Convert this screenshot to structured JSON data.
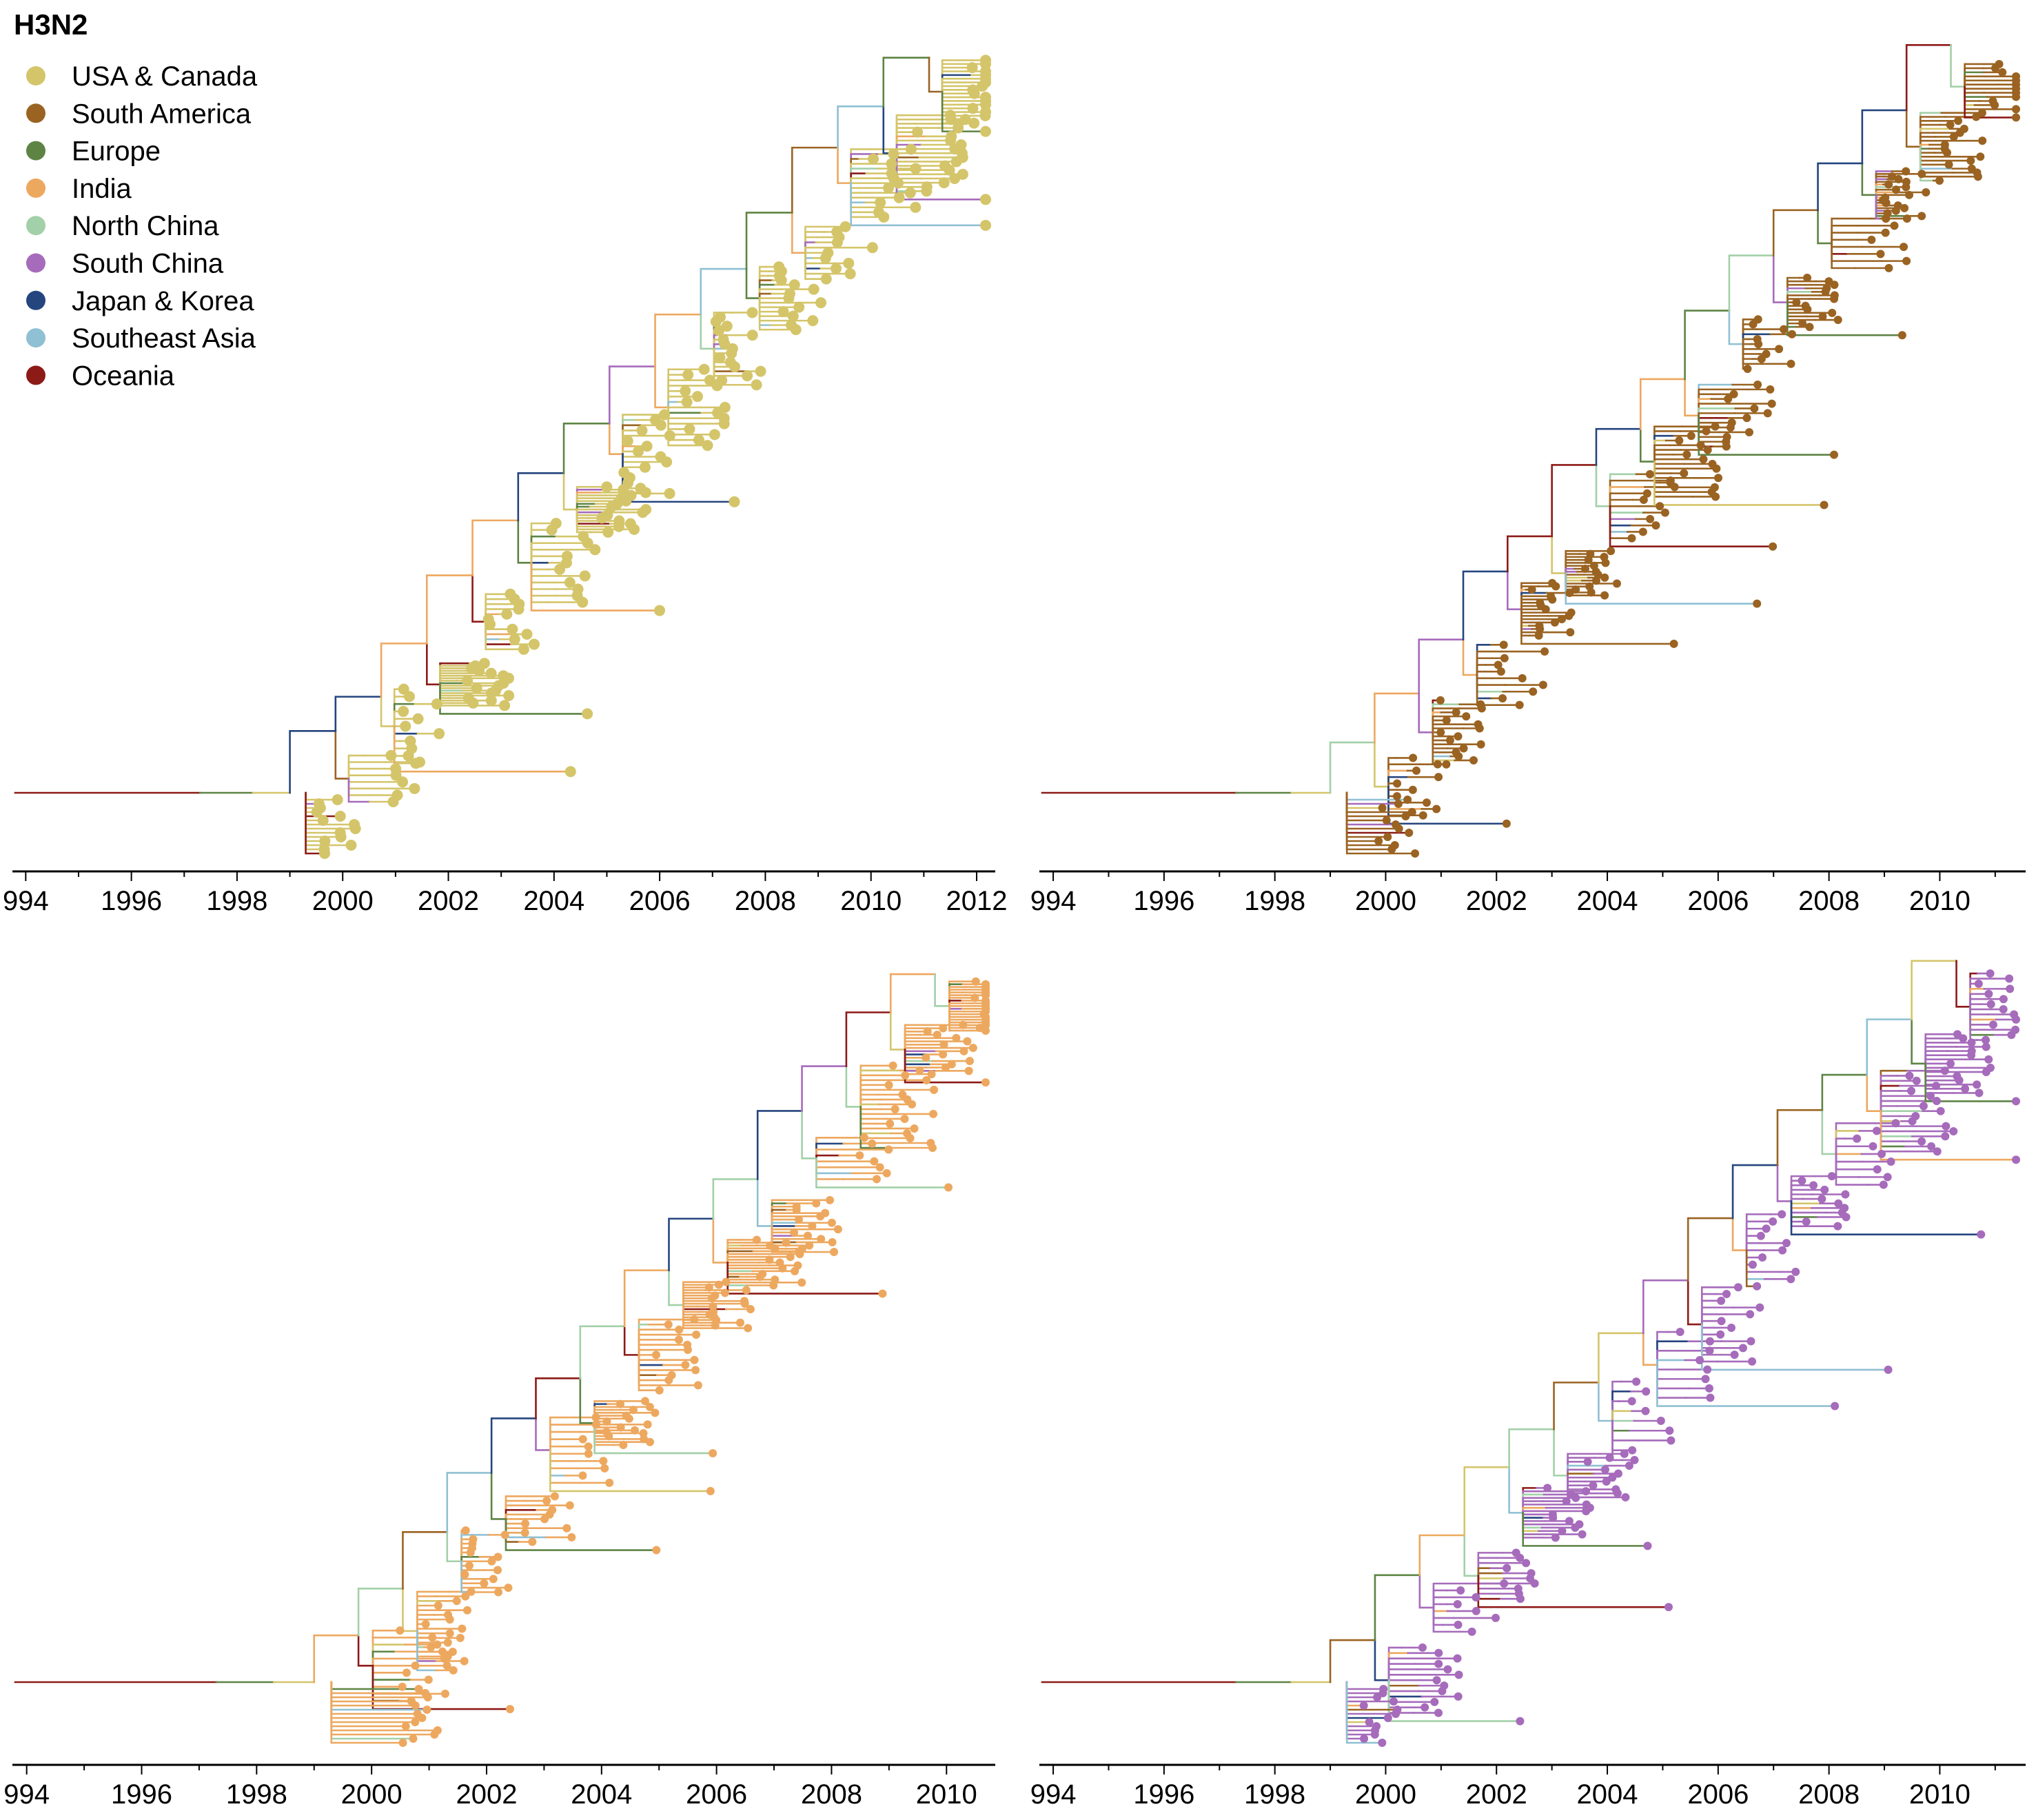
{
  "title": "H3N2",
  "colors": {
    "USA & Canada": "#d4c56a",
    "South America": "#9a6322",
    "Europe": "#5d8444",
    "India": "#eda85f",
    "North China": "#a2d0a8",
    "South China": "#a66bbb",
    "Japan & Korea": "#25457f",
    "Southeast Asia": "#8fc0d3",
    "Oceania": "#8c1a17"
  },
  "legend": [
    {
      "label": "USA & Canada",
      "color": "#d4c56a"
    },
    {
      "label": "South America",
      "color": "#9a6322"
    },
    {
      "label": "Europe",
      "color": "#5d8444"
    },
    {
      "label": "India",
      "color": "#eda85f"
    },
    {
      "label": "North China",
      "color": "#a2d0a8"
    },
    {
      "label": "South China",
      "color": "#a66bbb"
    },
    {
      "label": "Japan & Korea",
      "color": "#25457f"
    },
    {
      "label": "Southeast Asia",
      "color": "#8fc0d3"
    },
    {
      "label": "Oceania",
      "color": "#8c1a17"
    }
  ],
  "chart_data": [
    {
      "type": "phylogenetic-tree",
      "highlighted_region": "USA & Canada",
      "x_axis": {
        "ticks": [
          "994",
          "1996",
          "1998",
          "2000",
          "2002",
          "2004",
          "2006",
          "2008",
          "2010",
          "2012"
        ],
        "range": [
          1993.8,
          2012.3
        ]
      },
      "tips_range": [
        1999.5,
        2012.1
      ]
    },
    {
      "type": "phylogenetic-tree",
      "highlighted_region": "South America",
      "x_axis": {
        "ticks": [
          "994",
          "1996",
          "1998",
          "2000",
          "2002",
          "2004",
          "2006",
          "2008",
          "2010"
        ],
        "range": [
          1993.8,
          2011.5
        ]
      },
      "tips_range": [
        1999.8,
        2011.2
      ]
    },
    {
      "type": "phylogenetic-tree",
      "highlighted_region": "India",
      "x_axis": {
        "ticks": [
          "994",
          "1996",
          "1998",
          "2000",
          "2002",
          "2004",
          "2006",
          "2008",
          "2010"
        ],
        "range": [
          1993.8,
          2010.8
        ]
      },
      "tips_range": [
        2000.5,
        2010.8
      ]
    },
    {
      "type": "phylogenetic-tree",
      "highlighted_region": "South China",
      "x_axis": {
        "ticks": [
          "994",
          "1996",
          "1998",
          "2000",
          "2002",
          "2004",
          "2006",
          "2008",
          "2010"
        ],
        "range": [
          1993.8,
          2011.5
        ]
      },
      "tips_range": [
        1999.5,
        2011.3
      ]
    }
  ]
}
